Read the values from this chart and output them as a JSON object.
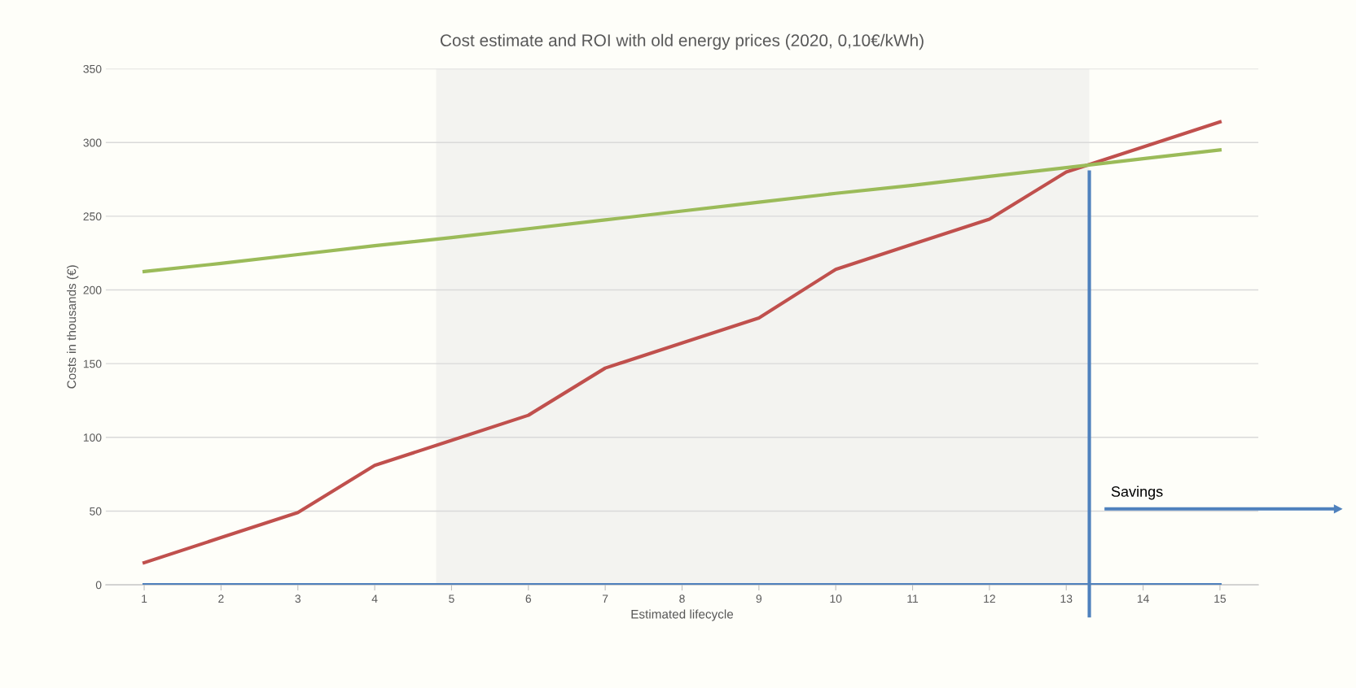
{
  "chart_data": {
    "type": "line",
    "title": "Cost estimate and ROI with old energy prices (2020, 0,10€/kWh)",
    "xlabel": "Estimated lifecycle",
    "ylabel": "Costs in thousands (€)",
    "x": [
      1,
      2,
      3,
      4,
      5,
      6,
      7,
      8,
      9,
      10,
      11,
      12,
      13,
      14,
      15
    ],
    "series": [
      {
        "color": "#c0504d",
        "values": [
          15,
          32,
          49,
          81,
          98,
          115,
          147,
          164,
          181,
          214,
          231,
          248,
          280,
          297,
          314
        ]
      },
      {
        "color": "#9bbb59",
        "values": [
          212.5,
          218,
          224,
          230,
          235.5,
          241.5,
          247.5,
          253.5,
          259.5,
          265.5,
          271,
          277,
          283,
          289,
          295
        ]
      },
      {
        "color": "#4f81bd",
        "values": [
          0,
          0,
          0,
          0,
          0,
          0,
          0,
          0,
          0,
          0,
          0,
          0,
          0,
          0,
          0
        ]
      }
    ],
    "xlim": [
      0.5,
      15.5
    ],
    "xticks": [
      1,
      2,
      3,
      4,
      5,
      6,
      7,
      8,
      9,
      10,
      11,
      12,
      13,
      14,
      15
    ],
    "ylim": [
      0,
      350
    ],
    "yticks": [
      0,
      50,
      100,
      150,
      200,
      250,
      300,
      350
    ],
    "ref_lines": [
      {
        "axis": "x",
        "value": 13.3,
        "color": "#4f81bd"
      }
    ],
    "bands": [
      {
        "axis": "x",
        "from": 4.8,
        "to": 13.3,
        "color": "#f3f3f0"
      }
    ],
    "annotations": [
      "Savings"
    ],
    "grid": "y",
    "marker": "none",
    "line_style": "solid"
  }
}
